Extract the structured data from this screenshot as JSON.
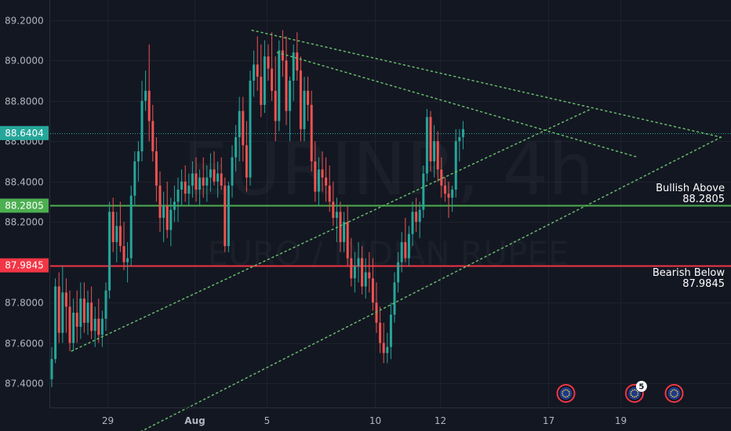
{
  "colors": {
    "background": "#131722",
    "grid": "#1e222d",
    "up": "#26a69a",
    "down": "#ef5350",
    "support": "#4caf50",
    "resistance": "#f23645",
    "trend": "#66bb6a",
    "axis_text": "#b2b5be",
    "current_price": "#26a69a"
  },
  "watermark": {
    "symbol": "EURINR, 4h",
    "name": "EURO / INDIAN RUPEE"
  },
  "chart_data": {
    "type": "candlestick",
    "symbol": "EURINR",
    "timeframe": "4h",
    "ylim": [
      87.28,
      89.3
    ],
    "y_ticks": [
      "89.2000",
      "89.0000",
      "88.8000",
      "88.6000",
      "88.4000",
      "88.2000",
      "87.8000",
      "87.6000",
      "87.4000"
    ],
    "y_tick_values": [
      89.2,
      89.0,
      88.8,
      88.6,
      88.4,
      88.2,
      87.8,
      87.6,
      87.4
    ],
    "x_ticks": [
      {
        "label": "29",
        "bar": 15.5,
        "bold": false
      },
      {
        "label": "Aug",
        "bar": 39.5,
        "bold": true
      },
      {
        "label": "5",
        "bar": 59.5,
        "bold": false
      },
      {
        "label": "10",
        "bar": 89.5,
        "bold": false
      },
      {
        "label": "12",
        "bar": 107.5,
        "bold": false
      },
      {
        "label": "17",
        "bar": 137.5,
        "bold": false
      },
      {
        "label": "19",
        "bar": 157.5,
        "bold": false
      }
    ],
    "ohlc": [
      [
        87.42,
        87.58,
        87.38,
        87.52
      ],
      [
        87.52,
        87.92,
        87.5,
        87.88
      ],
      [
        87.88,
        87.95,
        87.6,
        87.65
      ],
      [
        87.65,
        87.98,
        87.6,
        87.85
      ],
      [
        87.85,
        87.92,
        87.65,
        87.78
      ],
      [
        87.78,
        87.86,
        87.56,
        87.6
      ],
      [
        87.6,
        87.82,
        87.56,
        87.75
      ],
      [
        87.75,
        87.86,
        87.6,
        87.68
      ],
      [
        87.68,
        87.9,
        87.62,
        87.82
      ],
      [
        87.82,
        87.9,
        87.65,
        87.7
      ],
      [
        87.7,
        87.86,
        87.64,
        87.8
      ],
      [
        87.8,
        87.88,
        87.62,
        87.66
      ],
      [
        87.66,
        87.78,
        87.58,
        87.72
      ],
      [
        87.72,
        87.82,
        87.6,
        87.64
      ],
      [
        87.64,
        87.76,
        87.58,
        87.72
      ],
      [
        87.72,
        87.9,
        87.66,
        87.86
      ],
      [
        87.86,
        88.3,
        87.82,
        88.25
      ],
      [
        88.25,
        88.32,
        88.05,
        88.1
      ],
      [
        88.1,
        88.25,
        88.0,
        88.18
      ],
      [
        88.18,
        88.3,
        88.05,
        88.08
      ],
      [
        88.08,
        88.2,
        87.96,
        88.0
      ],
      [
        88.0,
        88.1,
        87.9,
        88.02
      ],
      [
        88.02,
        88.38,
        87.98,
        88.33
      ],
      [
        88.33,
        88.55,
        88.28,
        88.5
      ],
      [
        88.5,
        88.6,
        88.4,
        88.55
      ],
      [
        88.55,
        88.9,
        88.5,
        88.8
      ],
      [
        88.8,
        88.95,
        88.75,
        88.85
      ],
      [
        88.85,
        89.08,
        88.6,
        88.7
      ],
      [
        88.7,
        88.78,
        88.5,
        88.55
      ],
      [
        88.55,
        88.62,
        88.3,
        88.38
      ],
      [
        88.38,
        88.45,
        88.15,
        88.22
      ],
      [
        88.22,
        88.35,
        88.1,
        88.28
      ],
      [
        88.28,
        88.4,
        88.12,
        88.16
      ],
      [
        88.16,
        88.32,
        88.08,
        88.26
      ],
      [
        88.26,
        88.38,
        88.2,
        88.3
      ],
      [
        88.3,
        88.42,
        88.2,
        88.36
      ],
      [
        88.36,
        88.46,
        88.28,
        88.4
      ],
      [
        88.4,
        88.48,
        88.3,
        88.34
      ],
      [
        88.34,
        88.44,
        88.28,
        88.38
      ],
      [
        88.38,
        88.5,
        88.32,
        88.44
      ],
      [
        88.44,
        88.52,
        88.3,
        88.36
      ],
      [
        88.36,
        88.46,
        88.28,
        88.42
      ],
      [
        88.42,
        88.52,
        88.32,
        88.38
      ],
      [
        88.38,
        88.48,
        88.3,
        88.42
      ],
      [
        88.42,
        88.54,
        88.35,
        88.46
      ],
      [
        88.46,
        88.55,
        88.38,
        88.4
      ],
      [
        88.4,
        88.5,
        88.32,
        88.44
      ],
      [
        88.44,
        88.52,
        88.36,
        88.38
      ],
      [
        88.38,
        88.42,
        88.05,
        88.08
      ],
      [
        88.08,
        88.4,
        88.05,
        88.38
      ],
      [
        88.38,
        88.58,
        88.32,
        88.52
      ],
      [
        88.52,
        88.68,
        88.45,
        88.62
      ],
      [
        88.62,
        88.82,
        88.5,
        88.75
      ],
      [
        88.75,
        88.82,
        88.5,
        88.58
      ],
      [
        88.58,
        88.7,
        88.35,
        88.42
      ],
      [
        88.42,
        88.95,
        88.38,
        88.9
      ],
      [
        88.9,
        89.05,
        88.82,
        88.98
      ],
      [
        88.98,
        89.12,
        88.85,
        88.92
      ],
      [
        88.92,
        89.08,
        88.72,
        88.78
      ],
      [
        88.78,
        89.1,
        88.74,
        89.02
      ],
      [
        89.02,
        89.08,
        88.9,
        88.96
      ],
      [
        88.96,
        89.14,
        88.8,
        88.85
      ],
      [
        88.85,
        89.02,
        88.6,
        88.7
      ],
      [
        88.7,
        89.1,
        88.65,
        89.05
      ],
      [
        89.05,
        89.15,
        88.92,
        89.0
      ],
      [
        89.0,
        89.12,
        88.68,
        88.75
      ],
      [
        88.75,
        88.92,
        88.6,
        88.9
      ],
      [
        88.9,
        89.08,
        88.8,
        89.04
      ],
      [
        89.04,
        89.14,
        88.9,
        88.95
      ],
      [
        88.95,
        89.02,
        88.6,
        88.66
      ],
      [
        88.66,
        88.92,
        88.6,
        88.85
      ],
      [
        88.85,
        88.92,
        88.7,
        88.78
      ],
      [
        88.78,
        88.85,
        88.45,
        88.5
      ],
      [
        88.5,
        88.6,
        88.3,
        88.35
      ],
      [
        88.35,
        88.52,
        88.28,
        88.46
      ],
      [
        88.46,
        88.55,
        88.35,
        88.42
      ],
      [
        88.42,
        88.52,
        88.3,
        88.38
      ],
      [
        88.38,
        88.48,
        88.25,
        88.3
      ],
      [
        88.3,
        88.4,
        88.18,
        88.22
      ],
      [
        88.22,
        88.32,
        88.1,
        88.25
      ],
      [
        88.25,
        88.3,
        88.05,
        88.1
      ],
      [
        88.1,
        88.25,
        88.05,
        88.2
      ],
      [
        88.2,
        88.28,
        87.98,
        88.02
      ],
      [
        88.02,
        88.12,
        87.88,
        87.92
      ],
      [
        87.92,
        88.05,
        87.85,
        87.98
      ],
      [
        87.98,
        88.1,
        87.9,
        88.02
      ],
      [
        88.02,
        88.08,
        87.84,
        87.88
      ],
      [
        87.88,
        88.02,
        87.82,
        87.95
      ],
      [
        87.95,
        88.05,
        87.85,
        87.92
      ],
      [
        87.92,
        88.02,
        87.76,
        87.8
      ],
      [
        87.8,
        87.9,
        87.65,
        87.7
      ],
      [
        87.7,
        87.78,
        87.55,
        87.6
      ],
      [
        87.6,
        87.7,
        87.5,
        87.55
      ],
      [
        87.55,
        87.65,
        87.5,
        87.58
      ],
      [
        87.58,
        87.8,
        87.52,
        87.74
      ],
      [
        87.74,
        87.95,
        87.7,
        87.9
      ],
      [
        87.9,
        88.05,
        87.85,
        88.0
      ],
      [
        88.0,
        88.15,
        87.95,
        88.1
      ],
      [
        88.1,
        88.22,
        88.0,
        88.02
      ],
      [
        88.02,
        88.18,
        87.98,
        88.14
      ],
      [
        88.14,
        88.3,
        88.08,
        88.25
      ],
      [
        88.25,
        88.32,
        88.15,
        88.2
      ],
      [
        88.2,
        88.3,
        88.12,
        88.26
      ],
      [
        88.26,
        88.48,
        88.22,
        88.44
      ],
      [
        88.44,
        88.76,
        88.4,
        88.72
      ],
      [
        88.72,
        88.75,
        88.45,
        88.5
      ],
      [
        88.5,
        88.68,
        88.42,
        88.6
      ],
      [
        88.6,
        88.65,
        88.4,
        88.46
      ],
      [
        88.46,
        88.52,
        88.32,
        88.38
      ],
      [
        88.38,
        88.42,
        88.3,
        88.34
      ],
      [
        88.34,
        88.4,
        88.22,
        88.32
      ],
      [
        88.32,
        88.38,
        88.25,
        88.36
      ],
      [
        88.36,
        88.66,
        88.32,
        88.6
      ],
      [
        88.6,
        88.66,
        88.5,
        88.62
      ],
      [
        88.62,
        88.7,
        88.56,
        88.66
      ]
    ],
    "bars_per_day": 6,
    "horizontal_levels": [
      {
        "name": "support",
        "value": 88.2805,
        "label": "88.2805",
        "note_title": "Bullish Above",
        "note_value": "88.2805"
      },
      {
        "name": "resistance",
        "value": 87.9845,
        "label": "87.9845",
        "note_title": "Bearish Below",
        "note_value": "87.9845"
      }
    ],
    "current_price": {
      "value": 88.6404,
      "label": "88.6404"
    },
    "trendlines": [
      {
        "name": "upper-outer",
        "points": [
          [
            55.5,
            89.15
          ],
          [
            185.5,
            88.62
          ]
        ]
      },
      {
        "name": "upper-inner",
        "points": [
          [
            62.5,
            89.04
          ],
          [
            162.5,
            88.52
          ]
        ]
      },
      {
        "name": "lower-outer",
        "points": [
          [
            5.5,
            87.56
          ],
          [
            149.5,
            88.76
          ]
        ]
      },
      {
        "name": "lower-inner",
        "points": [
          [
            23.5,
            87.15
          ],
          [
            185.5,
            88.62
          ]
        ]
      }
    ],
    "events": [
      {
        "name": "eu-event-1",
        "bar": 142.5,
        "badge": ""
      },
      {
        "name": "eu-event-2",
        "bar": 161.5,
        "badge": "5"
      },
      {
        "name": "eu-event-3",
        "bar": 172.5,
        "badge": ""
      }
    ]
  }
}
